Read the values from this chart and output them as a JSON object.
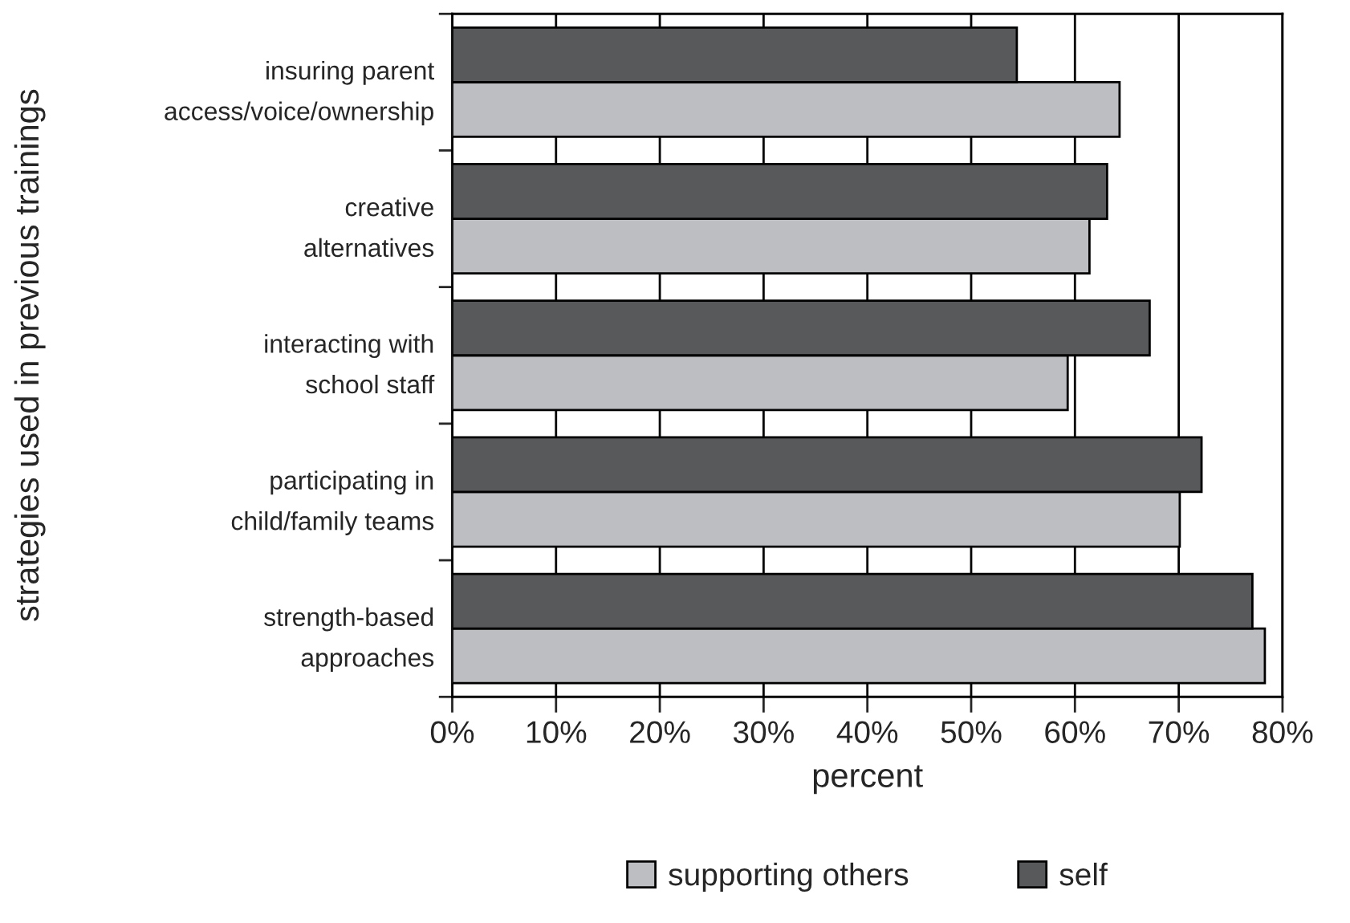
{
  "chart_data": {
    "type": "bar",
    "orientation": "horizontal",
    "xlabel": "percent",
    "ylabel": "strategies used in previous trainings",
    "categories": [
      "insuring parent\naccess/voice/ownership",
      "creative\nalternatives",
      "interacting with\nschool staff",
      "participating in\nchild/family teams",
      "strength-based\napproaches"
    ],
    "series": [
      {
        "name": "supporting others",
        "color": "#bdbec2",
        "values": [
          64.3,
          61.4,
          59.3,
          70.1,
          78.3
        ]
      },
      {
        "name": "self",
        "color": "#58595b",
        "values": [
          54.4,
          63.1,
          67.2,
          72.2,
          77.1
        ]
      }
    ],
    "xlim": [
      0,
      80
    ],
    "xticks": [
      {
        "value": 0,
        "label": "0%"
      },
      {
        "value": 10,
        "label": "10%"
      },
      {
        "value": 20,
        "label": "20%"
      },
      {
        "value": 30,
        "label": "30%"
      },
      {
        "value": 40,
        "label": "40%"
      },
      {
        "value": 50,
        "label": "50%"
      },
      {
        "value": 60,
        "label": "60%"
      },
      {
        "value": 70,
        "label": "70%"
      },
      {
        "value": 80,
        "label": "80%"
      }
    ],
    "grid": "x",
    "legend": "bottom"
  }
}
